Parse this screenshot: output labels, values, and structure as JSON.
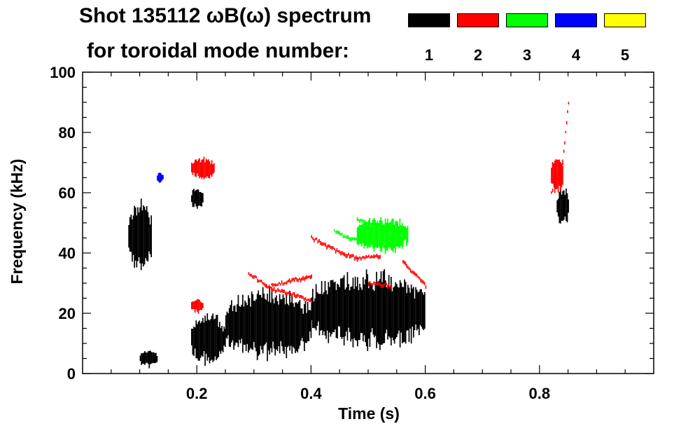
{
  "title_line1": "Shot 135112 ωB(ω) spectrum",
  "title_line2": "for toroidal mode number:",
  "legend": [
    {
      "mode": "1",
      "color": "#000000"
    },
    {
      "mode": "2",
      "color": "#ff0000"
    },
    {
      "mode": "3",
      "color": "#00ff00"
    },
    {
      "mode": "4",
      "color": "#0000ff"
    },
    {
      "mode": "5",
      "color": "#ffff00"
    }
  ],
  "chart_data": {
    "type": "heatmap",
    "xlabel": "Time (s)",
    "ylabel": "Frequency (kHz)",
    "xlim": [
      0.0,
      1.0
    ],
    "ylim": [
      0,
      100
    ],
    "x_ticks": [
      0.2,
      0.4,
      0.6,
      0.8
    ],
    "x_tick_labels": [
      "0.2",
      "0.4",
      "0.6",
      "0.8"
    ],
    "y_ticks": [
      0,
      20,
      40,
      60,
      80,
      100
    ],
    "y_tick_labels": [
      "0",
      "20",
      "40",
      "60",
      "80",
      "100"
    ],
    "mode_colors": {
      "1": "#000000",
      "2": "#ff0000",
      "3": "#00ff00",
      "4": "#0000ff",
      "5": "#ffff00"
    },
    "regions": [
      {
        "mode": 1,
        "t": [
          0.08,
          0.12
        ],
        "f": [
          32,
          58
        ]
      },
      {
        "mode": 1,
        "t": [
          0.1,
          0.13
        ],
        "f": [
          2,
          8
        ]
      },
      {
        "mode": 1,
        "t": [
          0.19,
          0.25
        ],
        "f": [
          3,
          20
        ]
      },
      {
        "mode": 1,
        "t": [
          0.19,
          0.21
        ],
        "f": [
          54,
          62
        ]
      },
      {
        "mode": 1,
        "t": [
          0.25,
          0.4
        ],
        "f": [
          5,
          28
        ]
      },
      {
        "mode": 1,
        "t": [
          0.4,
          0.6
        ],
        "f": [
          8,
          34
        ]
      },
      {
        "mode": 1,
        "t": [
          0.83,
          0.85
        ],
        "f": [
          49,
          62
        ]
      },
      {
        "mode": 2,
        "t": [
          0.19,
          0.23
        ],
        "f": [
          64,
          72
        ]
      },
      {
        "mode": 2,
        "t": [
          0.19,
          0.21
        ],
        "f": [
          20,
          25
        ]
      },
      {
        "mode": 2,
        "t": [
          0.82,
          0.84
        ],
        "f": [
          60,
          72
        ]
      },
      {
        "mode": 3,
        "t": [
          0.48,
          0.57
        ],
        "f": [
          40,
          52
        ]
      },
      {
        "mode": 4,
        "t": [
          0.13,
          0.14
        ],
        "f": [
          63,
          67
        ]
      }
    ],
    "tracks": [
      {
        "mode": 2,
        "points": [
          [
            0.29,
            33
          ],
          [
            0.33,
            28
          ],
          [
            0.37,
            26
          ],
          [
            0.4,
            24
          ]
        ]
      },
      {
        "mode": 2,
        "points": [
          [
            0.33,
            29
          ],
          [
            0.37,
            31
          ],
          [
            0.4,
            32
          ]
        ]
      },
      {
        "mode": 2,
        "points": [
          [
            0.4,
            45
          ],
          [
            0.44,
            41
          ],
          [
            0.48,
            38
          ],
          [
            0.52,
            39
          ]
        ]
      },
      {
        "mode": 2,
        "points": [
          [
            0.56,
            37
          ],
          [
            0.58,
            33
          ],
          [
            0.6,
            29
          ]
        ]
      },
      {
        "mode": 2,
        "points": [
          [
            0.5,
            30
          ],
          [
            0.54,
            29
          ]
        ]
      },
      {
        "mode": 2,
        "points": [
          [
            0.82,
            60
          ],
          [
            0.84,
            70
          ],
          [
            0.85,
            90
          ]
        ]
      },
      {
        "mode": 3,
        "points": [
          [
            0.44,
            47
          ],
          [
            0.48,
            44
          ],
          [
            0.52,
            42
          ],
          [
            0.56,
            43
          ]
        ]
      },
      {
        "mode": 3,
        "points": [
          [
            0.48,
            51
          ],
          [
            0.52,
            49
          ],
          [
            0.56,
            47
          ]
        ]
      }
    ]
  }
}
